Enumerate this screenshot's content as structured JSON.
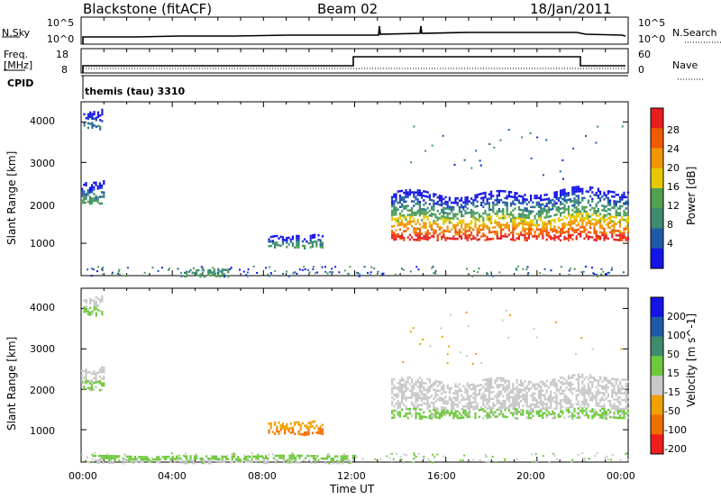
{
  "header": {
    "station": "Blackstone (fitACF)",
    "beam": "Beam 02",
    "date": "18/Jan/2011"
  },
  "strip1": {
    "left_label": "N.Sky",
    "right_label": "N.Search",
    "left_ticks": [
      "10^5",
      "10^0"
    ],
    "right_ticks": [
      "10^5",
      "10^0"
    ]
  },
  "strip2": {
    "left_label_1": "Freq.",
    "left_label_2": "[MHz]",
    "right_label": "Nave",
    "left_ticks": [
      "18",
      "8"
    ],
    "right_ticks": [
      "60",
      "0"
    ]
  },
  "cpid": {
    "label": "CPID",
    "value": "themis (tau) 3310"
  },
  "colors": {
    "power": [
      "#1414e6",
      "#1f5aa8",
      "#3c8c6e",
      "#50a050",
      "#e6c800",
      "#f09600",
      "#f05a00",
      "#e61e1e"
    ],
    "velocity": [
      "#1414e6",
      "#1f5aa8",
      "#3c8c6e",
      "#6ec83c",
      "#c8c8c8",
      "#f0a000",
      "#f06e00",
      "#f01e1e"
    ]
  },
  "chart_data": [
    {
      "type": "heatmap",
      "name": "power",
      "ylabel": "Slant Range [km]",
      "ylim": [
        200,
        4500
      ],
      "yticks": [
        "1000",
        "2000",
        "3000",
        "4000"
      ],
      "colorbar_label": "Power [dB]",
      "colorbar_ticks": [
        "4",
        "8",
        "12",
        "16",
        "20",
        "24",
        "28"
      ],
      "regions": [
        {
          "t0": 0.1,
          "t1": 0.9,
          "r0": 3850,
          "r1": 4350,
          "levels": [
            0,
            1,
            2
          ]
        },
        {
          "t0": 0.0,
          "t1": 1.0,
          "r0": 2000,
          "r1": 2600,
          "levels": [
            0,
            1,
            2,
            3
          ]
        },
        {
          "t0": 8.2,
          "t1": 10.6,
          "r0": 900,
          "r1": 1250,
          "levels": [
            0,
            1,
            2,
            3
          ]
        },
        {
          "t0": 13.6,
          "t1": 24.0,
          "r0": 1100,
          "r1": 2500,
          "levels": [
            0,
            1,
            2,
            3,
            4,
            5,
            6,
            7
          ]
        },
        {
          "t0": 4.5,
          "t1": 6.5,
          "r0": 200,
          "r1": 400,
          "levels": [
            2,
            3
          ]
        }
      ]
    },
    {
      "type": "heatmap",
      "name": "velocity",
      "ylabel": "Slant Range [km]",
      "ylim": [
        200,
        4500
      ],
      "yticks": [
        "1000",
        "2000",
        "3000",
        "4000"
      ],
      "xlabel": "Time UT",
      "xticks": [
        "00:00",
        "04:00",
        "08:00",
        "12:00",
        "16:00",
        "20:00",
        "00:00"
      ],
      "colorbar_label": "Velocity [m s^-1]",
      "colorbar_ticks": [
        "200",
        "100",
        "50",
        "15",
        "-15",
        "-50",
        "-100",
        "-200"
      ],
      "regions": [
        {
          "t0": 0.1,
          "t1": 0.9,
          "r0": 3850,
          "r1": 4350,
          "levels": [
            4,
            3
          ]
        },
        {
          "t0": 0.0,
          "t1": 1.0,
          "r0": 2000,
          "r1": 2600,
          "levels": [
            4,
            3
          ]
        },
        {
          "t0": 8.2,
          "t1": 10.6,
          "r0": 900,
          "r1": 1250,
          "levels": [
            5,
            6
          ]
        },
        {
          "t0": 13.6,
          "t1": 24.0,
          "r0": 1300,
          "r1": 2450,
          "levels": [
            4,
            4,
            4,
            3
          ]
        },
        {
          "t0": 0.5,
          "t1": 12.0,
          "r0": 200,
          "r1": 400,
          "levels": [
            3,
            4
          ]
        }
      ]
    }
  ]
}
